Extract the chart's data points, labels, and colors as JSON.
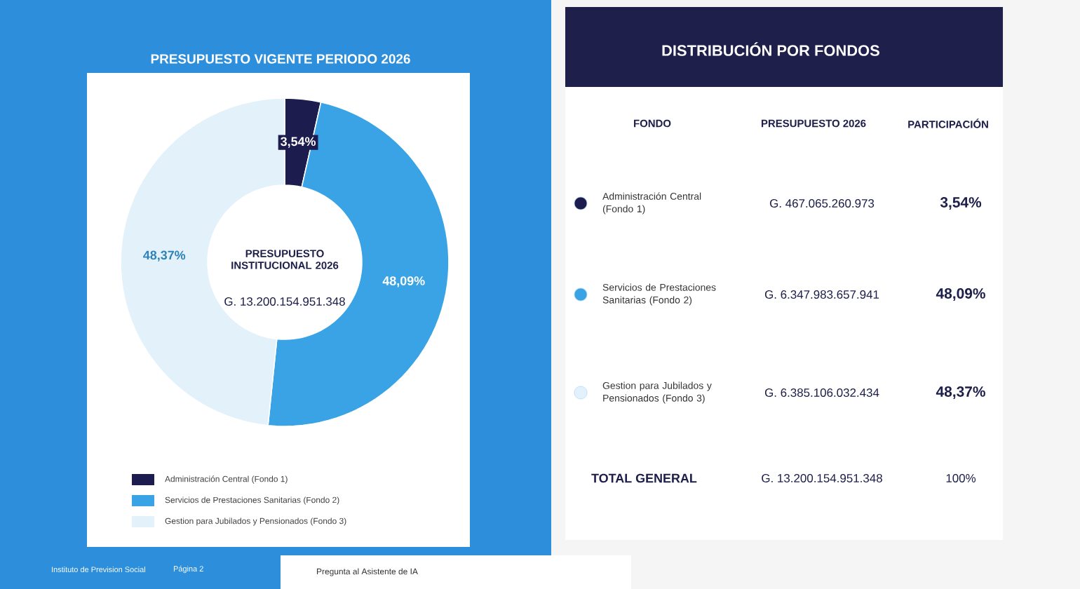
{
  "chart_data": [
    {
      "type": "donut",
      "title": "PRESUPUESTO VIGENTE PERIODO 2026",
      "categories": [
        "Administración Central (Fondo 1)",
        "Servicios de Prestaciones Sanitarias (Fondo 2)",
        "Gestion para Jubilados y Pensionados (Fondo 3)"
      ],
      "values": [
        3.54,
        48.09,
        48.37
      ],
      "value_labels": [
        "3,54%",
        "48,09%",
        "48,37%"
      ],
      "colors": [
        "#1c1d4e",
        "#3aa3e6",
        "#e3f1fb"
      ],
      "legend": "bottom",
      "annotations": [
        "PRESUPUESTO INSTITUCIONAL 2026",
        "G. 13.200.154.951.348",
        "Instituto de Prevision Social",
        "Página 2",
        "Pregunta al Asistente de IA"
      ]
    },
    {
      "type": "other",
      "title": "DISTRIBUCIÓN POR FONDOS",
      "annotations": [
        "FONDO",
        "PRESUPUESTO 2026",
        "PARTICIPACIÓN",
        "Administración Central (Fondo 1)",
        "G. 467.065.260.973",
        "3,54%",
        "Servicios de Prestaciones Sanitarias (Fondo 2)",
        "G. 6.347.983.657.941",
        "48,09%",
        "Gestion para Jubilados y Pensionados (Fondo 3)",
        "G. 6.385.106.032.434",
        "48,37%",
        "TOTAL GENERAL",
        "G. 13.200.154.951.348",
        "100%"
      ]
    }
  ]
}
